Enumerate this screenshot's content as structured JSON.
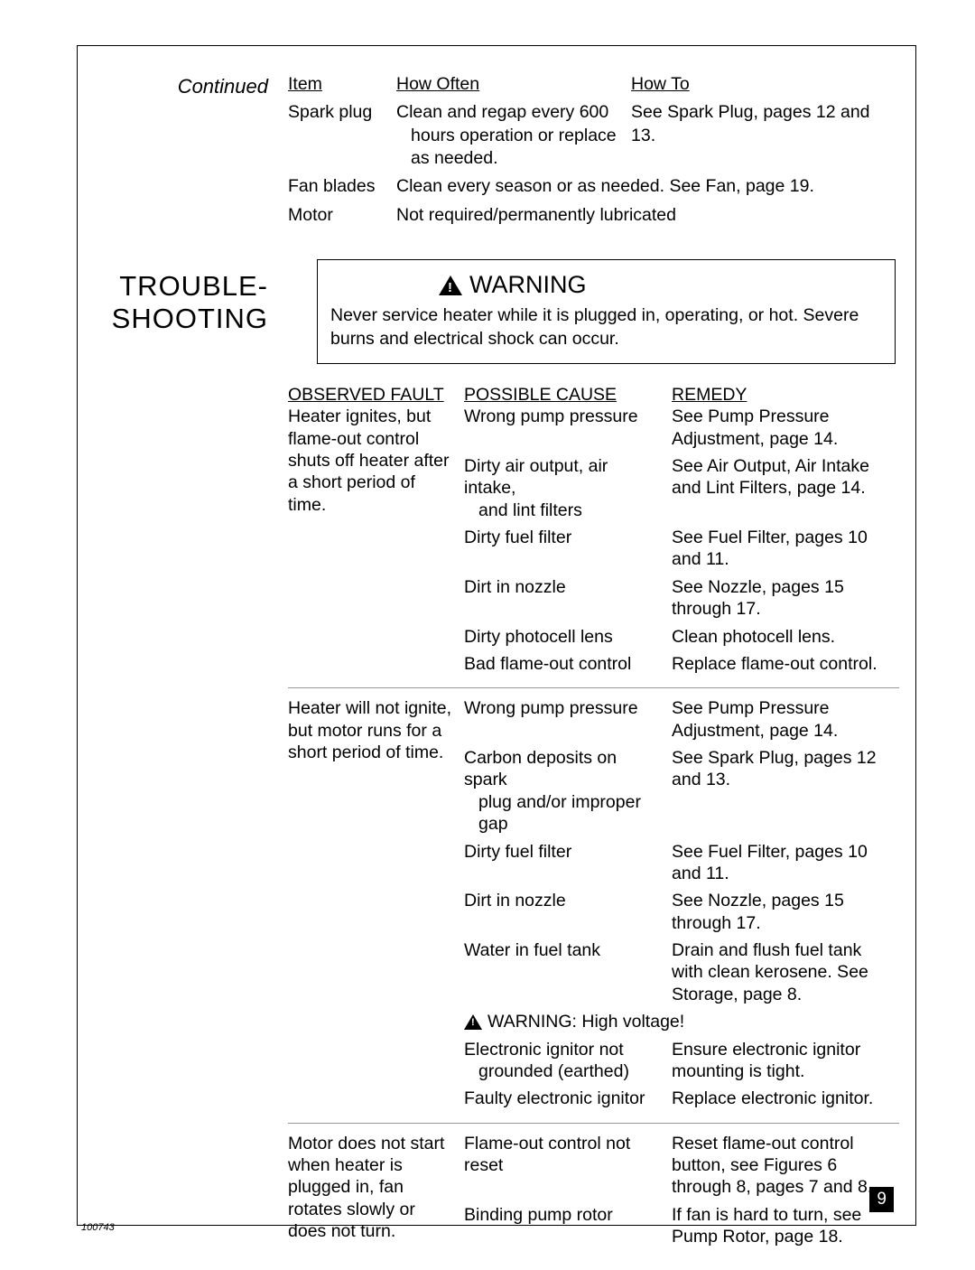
{
  "left": {
    "continued": "Continued",
    "section_title_l1": "TROUBLE-",
    "section_title_l2": "SHOOTING"
  },
  "maint": {
    "h_item": "Item",
    "h_how": "How Often",
    "h_howto": "How To",
    "rows": [
      {
        "item": "Spark plug",
        "how_l1": "Clean and regap every 600",
        "how_l2": "hours operation or replace",
        "how_l3": "as needed.",
        "howto": "See Spark Plug, pages 12 and 13."
      },
      {
        "item": "Fan blades",
        "how_l1": "Clean every season or as needed. See Fan, page 19."
      },
      {
        "item": "Motor",
        "how_l1": "Not required/permanently lubricated"
      }
    ]
  },
  "warn": {
    "title": "WARNING",
    "body": "Never service heater while it is plugged in, operating, or hot. Severe burns and electrical shock can occur."
  },
  "ts": {
    "h1": "OBSERVED FAULT",
    "h2": "POSSIBLE CAUSE",
    "h3": "REMEDY",
    "groups": [
      {
        "fault": "Heater ignites, but flame-out control shuts off heater after a short period of time.",
        "rows": [
          {
            "cause": "Wrong pump pressure",
            "remedy": "See Pump Pressure Adjustment, page 14."
          },
          {
            "cause": "Dirty air output, air intake,",
            "cause2": "and lint filters",
            "remedy": "See Air Output, Air Intake and Lint Filters, page 14."
          },
          {
            "cause": "Dirty fuel filter",
            "remedy": "See Fuel Filter, pages 10 and 11."
          },
          {
            "cause": "Dirt in nozzle",
            "remedy": "See Nozzle, pages 15 through 17."
          },
          {
            "cause": "Dirty photocell lens",
            "remedy": "Clean photocell lens."
          },
          {
            "cause": "Bad flame-out control",
            "remedy": "Replace flame-out control."
          }
        ]
      },
      {
        "fault": "Heater will not ignite, but motor runs for a short period of time.",
        "rows": [
          {
            "cause": "Wrong pump pressure",
            "remedy": "See Pump Pressure Adjustment, page 14."
          },
          {
            "cause": "Carbon deposits on spark",
            "cause2": "plug and/or improper gap",
            "remedy": "See Spark Plug, pages 12 and 13."
          },
          {
            "cause": "Dirty fuel filter",
            "remedy": "See Fuel Filter, pages 10 and 11."
          },
          {
            "cause": "Dirt in nozzle",
            "remedy": "See Nozzle, pages 15 through 17."
          },
          {
            "cause": "Water in fuel tank",
            "remedy": "Drain and flush fuel tank with clean kerosene. See Storage, page 8."
          }
        ],
        "inline_warn": "WARNING: High voltage!",
        "rows2": [
          {
            "cause": "Electronic ignitor not",
            "cause2": "grounded (earthed)",
            "remedy": "Ensure electronic ignitor mounting is tight."
          },
          {
            "cause": "Faulty electronic ignitor",
            "remedy": "Replace electronic ignitor."
          }
        ]
      },
      {
        "fault": "Motor does not start when heater is plugged in, fan rotates slowly or does not turn.",
        "rows": [
          {
            "cause": "Flame-out control not reset",
            "remedy": "Reset flame-out control button, see Figures 6 through 8, pages 7 and 8."
          },
          {
            "cause": "Binding pump rotor",
            "remedy": "If fan is hard to turn, see Pump Rotor, page 18."
          }
        ]
      }
    ]
  },
  "pagenum": "9",
  "docid": "100743"
}
